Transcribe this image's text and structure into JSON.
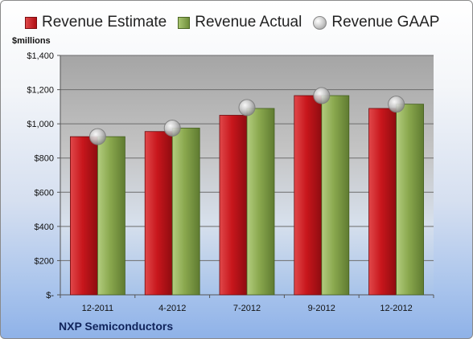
{
  "legend": {
    "estimate": "Revenue Estimate",
    "actual": "Revenue Actual",
    "gaap": "Revenue GAAP"
  },
  "unit_label": "$millions",
  "company": "NXP Semiconductors",
  "colors": {
    "estimate": "#c8161c",
    "actual": "#8aa84e",
    "gaap": "#c0c0c0"
  },
  "chart_data": {
    "type": "bar",
    "categories": [
      "12-2011",
      "4-2012",
      "7-2012",
      "9-2012",
      "12-2012"
    ],
    "series": [
      {
        "name": "Revenue Estimate",
        "values": [
          925,
          955,
          1050,
          1165,
          1090
        ]
      },
      {
        "name": "Revenue Actual",
        "values": [
          925,
          975,
          1090,
          1165,
          1115
        ]
      },
      {
        "name": "Revenue GAAP",
        "values": [
          925,
          975,
          1095,
          1165,
          1115
        ]
      }
    ],
    "ylim": [
      0,
      1400
    ],
    "yticks": [
      0,
      200,
      400,
      600,
      800,
      1000,
      1200,
      1400
    ],
    "ytick_labels": [
      "$-",
      "$200",
      "$400",
      "$600",
      "$800",
      "$1,000",
      "$1,200",
      "$1,400"
    ],
    "ylabel": "$millions",
    "grid": true,
    "legend_position": "top"
  }
}
